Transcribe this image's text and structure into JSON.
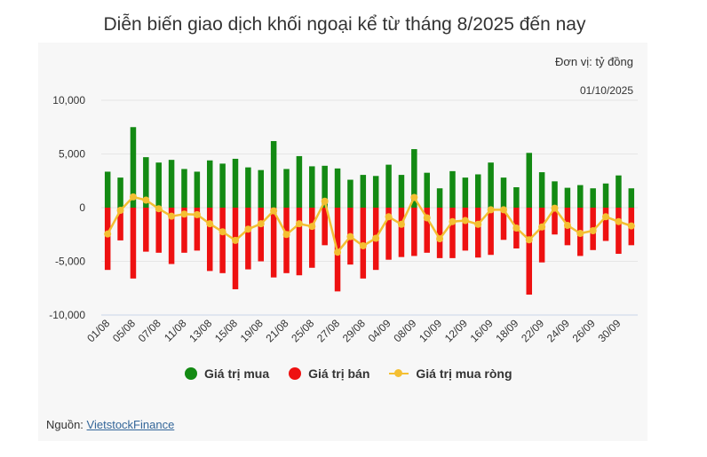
{
  "title": "Diễn biến giao dịch khối ngoại kể từ tháng 8/2025 đến nay",
  "unit_label": "Đơn vị: tỷ đồng",
  "date_label": "01/10/2025",
  "source": {
    "prefix": "Nguồn: ",
    "link": "VietstockFinance"
  },
  "colors": {
    "buy": "#138a13",
    "sell": "#ee1111",
    "net": "#f4bf32",
    "grid": "#e6e6e6"
  },
  "chart_data": {
    "type": "bar",
    "title": "Diễn biến giao dịch khối ngoại kể từ tháng 8/2025 đến nay",
    "ylim": [
      -10000,
      10000
    ],
    "yticks": [
      10000,
      5000,
      0,
      -5000,
      -10000
    ],
    "ytick_labels": [
      "10,000",
      "5,000",
      "0",
      "-5,000",
      "-10,000"
    ],
    "categories": [
      "01/08",
      "04/08",
      "05/08",
      "06/08",
      "07/08",
      "08/08",
      "11/08",
      "12/08",
      "13/08",
      "14/08",
      "15/08",
      "18/08",
      "19/08",
      "20/08",
      "21/08",
      "22/08",
      "25/08",
      "26/08",
      "27/08",
      "28/08",
      "29/08",
      "03/09",
      "04/09",
      "05/09",
      "08/09",
      "09/09",
      "10/09",
      "11/09",
      "12/09",
      "15/09",
      "16/09",
      "17/09",
      "18/09",
      "19/09",
      "22/09",
      "23/09",
      "24/09",
      "25/09",
      "26/09",
      "29/09",
      "30/09",
      "01/10"
    ],
    "shown_tick_labels": [
      "01/08",
      "05/08",
      "07/08",
      "11/08",
      "13/08",
      "15/08",
      "19/08",
      "21/08",
      "25/08",
      "27/08",
      "29/08",
      "04/09",
      "08/09",
      "10/09",
      "12/09",
      "16/09",
      "18/09",
      "22/09",
      "24/09",
      "26/09",
      "30/09"
    ],
    "series": [
      {
        "name": "Giá trị mua",
        "type": "bar",
        "values": [
          3350,
          2800,
          7500,
          4700,
          4200,
          4450,
          3600,
          3350,
          4400,
          4100,
          4550,
          3750,
          3500,
          6200,
          3600,
          4800,
          3850,
          3900,
          3650,
          2600,
          3050,
          2950,
          4000,
          3050,
          5450,
          3250,
          1800,
          3400,
          2800,
          3100,
          4200,
          2800,
          1900,
          5100,
          3300,
          2450,
          1850,
          2100,
          1800,
          2250,
          3000,
          1800
        ]
      },
      {
        "name": "Giá trị bán",
        "type": "bar",
        "values": [
          -5800,
          -3050,
          -6600,
          -4100,
          -4200,
          -5250,
          -4200,
          -4000,
          -5900,
          -6100,
          -7600,
          -5750,
          -5000,
          -6500,
          -6100,
          -6300,
          -5600,
          -3500,
          -7800,
          -5300,
          -6600,
          -5800,
          -4850,
          -4600,
          -4500,
          -4200,
          -4700,
          -4700,
          -4000,
          -4650,
          -4400,
          -3000,
          -3800,
          -8100,
          -5100,
          -2500,
          -3500,
          -4500,
          -3950,
          -3100,
          -4300,
          -3500
        ]
      },
      {
        "name": "Giá trị mua ròng",
        "type": "line",
        "values": [
          -2450,
          -250,
          1000,
          700,
          -100,
          -800,
          -600,
          -650,
          -1500,
          -2250,
          -3050,
          -2000,
          -1500,
          -300,
          -2500,
          -1500,
          -1750,
          600,
          -4150,
          -2700,
          -3550,
          -2850,
          -850,
          -1550,
          950,
          -950,
          -2900,
          -1300,
          -1200,
          -1550,
          -200,
          -200,
          -1900,
          -3000,
          -1800,
          -50,
          -1650,
          -2400,
          -2150,
          -850,
          -1300,
          -1700
        ]
      }
    ],
    "legend": [
      "Giá trị mua",
      "Giá trị bán",
      "Giá trị mua ròng"
    ],
    "legend_position": "bottom",
    "grid": true
  }
}
